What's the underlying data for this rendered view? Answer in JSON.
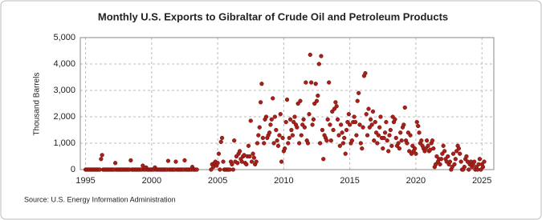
{
  "chart_data": {
    "type": "scatter",
    "title": "Monthly U.S. Exports to Gibraltar of Crude Oil and Petroleum Products",
    "y_label": "Thousand Barrels",
    "source": "Source: U.S. Energy Information Administration",
    "color": "#a8201a",
    "grid": true,
    "xlim": [
      1994.6,
      2025.9
    ],
    "ylim": [
      0,
      5000
    ],
    "xticks": [
      1995,
      2000,
      2005,
      2010,
      2015,
      2020,
      2025
    ],
    "yticks": [
      0,
      {
        "value": 1000,
        "label": "1,000"
      },
      {
        "value": 2000,
        "label": "2,000"
      },
      {
        "value": 3000,
        "label": "3,000"
      },
      {
        "value": 4000,
        "label": "4,000"
      },
      {
        "value": 5000,
        "label": "5,000"
      }
    ],
    "x": [
      1995.0,
      1995.08,
      1995.17,
      1995.25,
      1995.33,
      1995.42,
      1995.5,
      1995.58,
      1995.67,
      1995.75,
      1995.83,
      1995.92,
      1996.0,
      1996.08,
      1996.17,
      1996.25,
      1996.33,
      1996.42,
      1996.5,
      1996.58,
      1996.67,
      1996.75,
      1996.83,
      1996.92,
      1997.0,
      1997.08,
      1997.17,
      1997.25,
      1997.33,
      1997.42,
      1997.5,
      1997.58,
      1997.67,
      1997.75,
      1997.83,
      1997.92,
      1998.0,
      1998.08,
      1998.17,
      1998.25,
      1998.33,
      1998.42,
      1998.5,
      1998.58,
      1998.67,
      1998.75,
      1998.83,
      1998.92,
      1999.0,
      1999.08,
      1999.17,
      1999.25,
      1999.33,
      1999.42,
      1999.5,
      1999.58,
      1999.67,
      1999.75,
      1999.83,
      1999.92,
      2000.0,
      2000.08,
      2000.17,
      2000.25,
      2000.33,
      2000.42,
      2000.5,
      2000.58,
      2000.67,
      2000.75,
      2000.83,
      2000.92,
      2001.0,
      2001.08,
      2001.17,
      2001.25,
      2001.33,
      2001.42,
      2001.5,
      2001.58,
      2001.67,
      2001.75,
      2001.83,
      2001.92,
      2002.0,
      2002.08,
      2002.17,
      2002.25,
      2002.33,
      2002.42,
      2002.5,
      2002.58,
      2002.67,
      2002.75,
      2002.83,
      2002.92,
      2003.0,
      2003.08,
      2003.17,
      2003.25,
      2003.33,
      2003.42,
      2004.5,
      2004.58,
      2004.67,
      2004.75,
      2004.83,
      2004.92,
      2005.0,
      2005.08,
      2005.17,
      2005.25,
      2005.33,
      2005.42,
      2005.5,
      2005.58,
      2005.67,
      2005.75,
      2005.83,
      2005.92,
      2006.0,
      2006.08,
      2006.17,
      2006.25,
      2006.33,
      2006.42,
      2006.5,
      2006.58,
      2006.67,
      2006.75,
      2006.83,
      2006.92,
      2007.0,
      2007.08,
      2007.17,
      2007.25,
      2007.33,
      2007.42,
      2007.5,
      2007.58,
      2007.67,
      2007.75,
      2007.83,
      2007.92,
      2008.0,
      2008.08,
      2008.17,
      2008.25,
      2008.33,
      2008.42,
      2008.5,
      2008.58,
      2008.67,
      2008.75,
      2008.83,
      2008.92,
      2009.0,
      2009.08,
      2009.17,
      2009.25,
      2009.33,
      2009.42,
      2009.5,
      2009.58,
      2009.67,
      2009.75,
      2009.83,
      2009.92,
      2010.0,
      2010.08,
      2010.17,
      2010.25,
      2010.33,
      2010.42,
      2010.5,
      2010.58,
      2010.67,
      2010.75,
      2010.83,
      2010.92,
      2011.0,
      2011.08,
      2011.17,
      2011.25,
      2011.33,
      2011.42,
      2011.5,
      2011.58,
      2011.67,
      2011.75,
      2011.83,
      2011.92,
      2012.0,
      2012.08,
      2012.17,
      2012.25,
      2012.33,
      2012.42,
      2012.5,
      2012.58,
      2012.67,
      2012.75,
      2012.83,
      2012.92,
      2013.0,
      2013.08,
      2013.17,
      2013.25,
      2013.33,
      2013.42,
      2013.5,
      2013.58,
      2013.67,
      2013.75,
      2013.83,
      2013.92,
      2014.0,
      2014.08,
      2014.17,
      2014.25,
      2014.33,
      2014.42,
      2014.5,
      2014.58,
      2014.67,
      2014.75,
      2014.83,
      2014.92,
      2015.0,
      2015.08,
      2015.17,
      2015.25,
      2015.33,
      2015.42,
      2015.5,
      2015.58,
      2015.67,
      2015.75,
      2015.83,
      2015.92,
      2016.0,
      2016.08,
      2016.17,
      2016.25,
      2016.33,
      2016.42,
      2016.5,
      2016.58,
      2016.67,
      2016.75,
      2016.83,
      2016.92,
      2017.0,
      2017.08,
      2017.17,
      2017.25,
      2017.33,
      2017.42,
      2017.5,
      2017.58,
      2017.67,
      2017.75,
      2017.83,
      2017.92,
      2018.0,
      2018.08,
      2018.17,
      2018.25,
      2018.33,
      2018.42,
      2018.5,
      2018.58,
      2018.67,
      2018.75,
      2018.83,
      2018.92,
      2019.0,
      2019.08,
      2019.17,
      2019.25,
      2019.33,
      2019.42,
      2019.5,
      2019.58,
      2019.67,
      2019.75,
      2019.83,
      2019.92,
      2020.0,
      2020.08,
      2020.17,
      2020.25,
      2020.33,
      2020.42,
      2020.5,
      2020.58,
      2020.67,
      2020.75,
      2020.83,
      2020.92,
      2021.0,
      2021.08,
      2021.17,
      2021.25,
      2021.33,
      2021.42,
      2021.5,
      2021.58,
      2021.67,
      2021.75,
      2021.83,
      2021.92,
      2022.0,
      2022.08,
      2022.17,
      2022.25,
      2022.33,
      2022.42,
      2022.5,
      2022.58,
      2022.67,
      2022.75,
      2022.83,
      2022.92,
      2023.0,
      2023.08,
      2023.17,
      2023.25,
      2023.33,
      2023.42,
      2023.5,
      2023.58,
      2023.67,
      2023.75,
      2023.83,
      2023.92,
      2024.0,
      2024.08,
      2024.17,
      2024.25,
      2024.33,
      2024.42,
      2024.5,
      2024.58,
      2024.67,
      2024.75,
      2024.83,
      2024.92,
      2025.0,
      2025.08,
      2025.17
    ],
    "values": [
      0,
      0,
      0,
      0,
      0,
      0,
      0,
      0,
      0,
      0,
      0,
      0,
      0,
      0,
      400,
      550,
      0,
      0,
      0,
      0,
      0,
      0,
      0,
      0,
      0,
      0,
      0,
      250,
      0,
      0,
      0,
      0,
      0,
      0,
      0,
      0,
      0,
      0,
      0,
      0,
      0,
      350,
      0,
      0,
      0,
      0,
      0,
      0,
      0,
      0,
      0,
      0,
      150,
      0,
      0,
      80,
      0,
      0,
      0,
      0,
      0,
      0,
      0,
      80,
      0,
      0,
      0,
      0,
      0,
      0,
      0,
      0,
      0,
      0,
      0,
      330,
      0,
      0,
      0,
      0,
      0,
      0,
      300,
      0,
      0,
      0,
      0,
      0,
      0,
      0,
      350,
      0,
      0,
      0,
      0,
      0,
      0,
      100,
      0,
      0,
      0,
      0,
      0,
      200,
      100,
      250,
      300,
      150,
      250,
      600,
      0,
      1050,
      1200,
      300,
      0,
      0,
      0,
      0,
      0,
      0,
      300,
      200,
      0,
      1100,
      300,
      500,
      250,
      600,
      700,
      400,
      300,
      500,
      550,
      250,
      200,
      500,
      900,
      500,
      1850,
      300,
      600,
      450,
      200,
      300,
      1000,
      1300,
      1600,
      2550,
      3250,
      1200,
      1000,
      1900,
      2000,
      1200,
      1300,
      1400,
      1700,
      1900,
      2700,
      1000,
      2000,
      1500,
      1100,
      900,
      1300,
      2100,
      300,
      1200,
      700,
      800,
      1800,
      2650,
      1000,
      1200,
      1900,
      1500,
      1300,
      1800,
      2000,
      1700,
      1600,
      2500,
      1000,
      2600,
      1300,
      1700,
      1900,
      1600,
      3300,
      1100,
      1000,
      2100,
      4350,
      3300,
      1700,
      1900,
      2500,
      3250,
      2600,
      2800,
      4000,
      1000,
      4300,
      1500,
      400,
      1300,
      1200,
      1100,
      1900,
      3300,
      1700,
      1100,
      2200,
      1500,
      2300,
      2550,
      2400,
      1900,
      1300,
      900,
      1700,
      1400,
      1000,
      1200,
      600,
      1500,
      1800,
      2100,
      1700,
      1000,
      1100,
      1800,
      2000,
      1800,
      1300,
      2600,
      2900,
      1700,
      1000,
      800,
      1600,
      3550,
      3650,
      2100,
      1300,
      2300,
      1600,
      1900,
      1700,
      2200,
      1100,
      1800,
      1400,
      1000,
      1300,
      1600,
      2000,
      1200,
      800,
      1200,
      1400,
      1800,
      1100,
      700,
      1300,
      1500,
      900,
      2000,
      1800,
      1900,
      1200,
      900,
      1000,
      800,
      1400,
      1100,
      1600,
      1700,
      2350,
      1100,
      1000,
      1400,
      700,
      1300,
      600,
      900,
      700,
      800,
      600,
      1800,
      1650,
      1400,
      1000,
      1100,
      900,
      800,
      700,
      800,
      1100,
      900,
      700,
      750,
      1000,
      1100,
      800,
      100,
      200,
      500,
      300,
      400,
      200,
      400,
      600,
      900,
      700,
      400,
      300,
      500,
      200,
      300,
      0,
      100,
      600,
      200,
      400,
      700,
      900,
      800,
      600,
      300,
      0,
      0,
      100,
      400,
      500,
      300,
      0,
      200,
      300,
      100,
      200,
      300,
      0,
      100,
      0,
      200,
      400,
      0,
      200,
      100,
      300
    ]
  }
}
